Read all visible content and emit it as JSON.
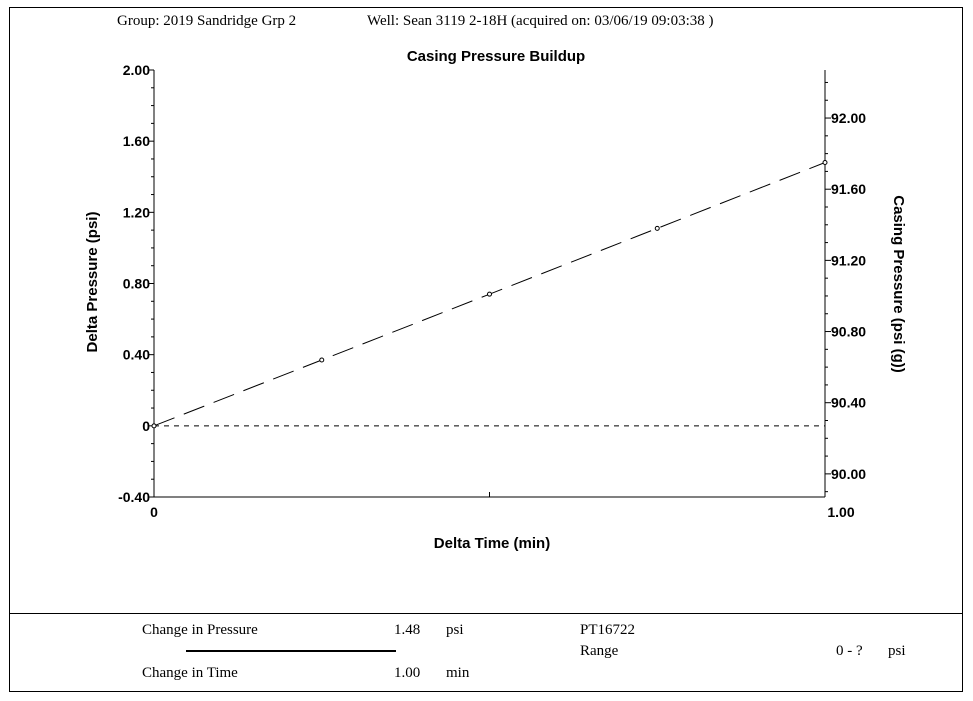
{
  "header": {
    "group": "Group: 2019 Sandridge Grp 2",
    "well": "Well: Sean 3119 2-18H (acquired on: 03/06/19 09:03:38 )"
  },
  "chart_data": {
    "type": "line",
    "title": "Casing Pressure Buildup",
    "xlabel": "Delta Time (min)",
    "ylabel": "Delta Pressure (psi)",
    "y2label": "Casing Pressure (psi (g))",
    "xlim": [
      0,
      1.0
    ],
    "ylim": [
      -0.4,
      2.0
    ],
    "y2lim": [
      89.87,
      92.27
    ],
    "x_ticks": [
      "0",
      "1.00"
    ],
    "y_ticks": [
      {
        "value": 2.0,
        "label": "2.00"
      },
      {
        "value": 1.6,
        "label": "1.60"
      },
      {
        "value": 1.2,
        "label": "1.20"
      },
      {
        "value": 0.8,
        "label": "0.80"
      },
      {
        "value": 0.4,
        "label": "0.40"
      },
      {
        "value": 0,
        "label": "0"
      },
      {
        "value": -0.4,
        "label": "-0.40"
      }
    ],
    "y2_ticks": [
      {
        "value": 92.0,
        "label": "92.00"
      },
      {
        "value": 91.6,
        "label": "91.60"
      },
      {
        "value": 91.2,
        "label": "91.20"
      },
      {
        "value": 90.8,
        "label": "90.80"
      },
      {
        "value": 90.4,
        "label": "90.40"
      },
      {
        "value": 90.0,
        "label": "90.00"
      }
    ],
    "series": [
      {
        "x": [
          0,
          0.25,
          0.5,
          0.75,
          1.0
        ],
        "y": [
          0,
          0.37,
          0.74,
          1.11,
          1.48
        ],
        "style": "long-dash",
        "markers": "open-circle"
      }
    ],
    "reference_line": {
      "y": 0,
      "style": "short-dash"
    },
    "grid": false
  },
  "summary": {
    "pressure_label": "Change in Pressure",
    "pressure_value": "1.48",
    "pressure_unit": "psi",
    "time_label": "Change in Time",
    "time_value": "1.00",
    "time_unit": "min",
    "sensor": "PT16722",
    "range_label": "Range",
    "range_value": "0 - ?",
    "range_unit": "psi"
  }
}
